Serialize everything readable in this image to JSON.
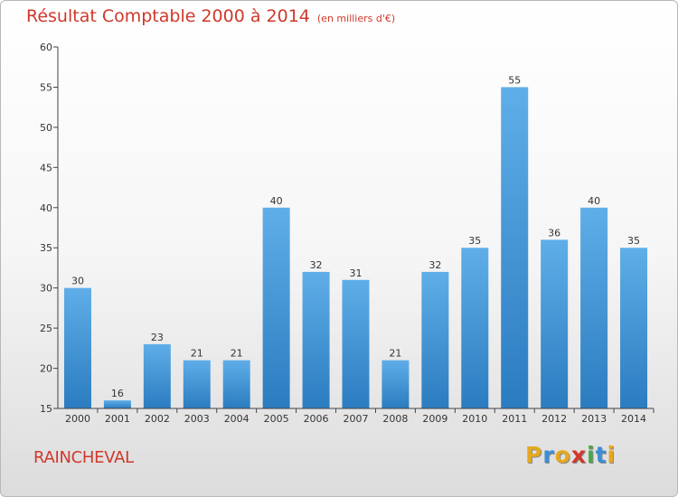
{
  "header": {
    "title": "Résultat Comptable 2000 à 2014",
    "subtitle": "(en milliers d'€)"
  },
  "footer": {
    "town": "RAINCHEVAL",
    "brand_letters": [
      "P",
      "r",
      "o",
      "x",
      "i",
      "t",
      "i"
    ],
    "brand_colors": [
      "#e6a81e",
      "#3c8fd6",
      "#e6a81e",
      "#d0382b",
      "#4aa84a",
      "#3c8fd6",
      "#e6a81e"
    ]
  },
  "colors": {
    "title": "#d0382b",
    "bar_top": "#5faee8",
    "bar_bottom": "#2b7cc0",
    "axis": "#444444"
  },
  "chart_data": {
    "type": "bar",
    "title": "Résultat Comptable 2000 à 2014",
    "xlabel": "",
    "ylabel": "",
    "ylim": [
      15,
      60
    ],
    "yticks": [
      15,
      20,
      25,
      30,
      35,
      40,
      45,
      50,
      55,
      60
    ],
    "categories": [
      "2000",
      "2001",
      "2002",
      "2003",
      "2004",
      "2005",
      "2006",
      "2007",
      "2008",
      "2009",
      "2010",
      "2011",
      "2012",
      "2013",
      "2014"
    ],
    "values": [
      30,
      16,
      23,
      21,
      21,
      40,
      32,
      31,
      21,
      32,
      35,
      55,
      36,
      40,
      35
    ],
    "data_labels": [
      "30",
      "16",
      "23",
      "21",
      "21",
      "40",
      "32",
      "31",
      "21",
      "32",
      "35",
      "55",
      "36",
      "40",
      "35"
    ],
    "grid": false
  }
}
